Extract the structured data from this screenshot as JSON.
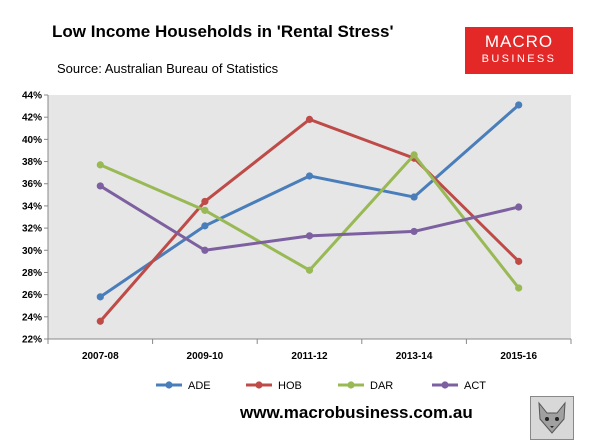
{
  "header": {
    "title": "Low Income Households in 'Rental Stress'",
    "subtitle": "Source: Australian Bureau of Statistics"
  },
  "logo": {
    "line1": "MACRO",
    "line2": "BUSINESS",
    "color": "#e42727"
  },
  "footer": {
    "url": "www.macrobusiness.com.au"
  },
  "mascot": {
    "icon": "fox-icon"
  },
  "chart_data": {
    "type": "line",
    "title": "Low Income Households in 'Rental Stress'",
    "categories": [
      "2007-08",
      "2009-10",
      "2011-12",
      "2013-14",
      "2015-16"
    ],
    "ylim": [
      22,
      44
    ],
    "ytick_step": 2,
    "ytick_format": "percent",
    "grid": false,
    "plot_background": "#e6e6e6",
    "legend": "bottom",
    "series": [
      {
        "name": "ADE",
        "color": "#4a7ebb",
        "values": [
          25.8,
          32.2,
          36.7,
          34.8,
          43.1
        ]
      },
      {
        "name": "HOB",
        "color": "#be4b48",
        "values": [
          23.6,
          34.4,
          41.8,
          38.3,
          29.0
        ]
      },
      {
        "name": "DAR",
        "color": "#98b954",
        "values": [
          37.7,
          33.6,
          28.2,
          38.6,
          26.6
        ]
      },
      {
        "name": "ACT",
        "color": "#7d60a0",
        "values": [
          35.8,
          30.0,
          31.3,
          31.7,
          33.9
        ]
      }
    ]
  }
}
